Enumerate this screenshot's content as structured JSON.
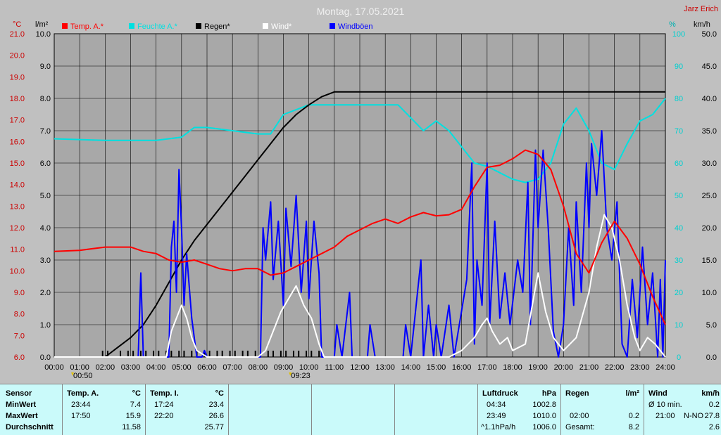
{
  "chart_data": {
    "type": "line",
    "title": "Montag, 17.05.2021",
    "author": "Jarz Erich",
    "ylim_rain": [
      0,
      10
    ],
    "ylim_temp": [
      6,
      21
    ],
    "ylim_hum": [
      0,
      100
    ],
    "ylim_wind": [
      0,
      50
    ],
    "grid": true,
    "axis_unit_left_temp": "°C",
    "axis_unit_left_rain": "l/m²",
    "axis_unit_right_hum": "%",
    "axis_unit_right_wind": "km/h",
    "x_ticks": [
      "00:00",
      "01:00",
      "02:00",
      "03:00",
      "04:00",
      "05:00",
      "06:00",
      "07:00",
      "08:00",
      "09:00",
      "10:00",
      "11:00",
      "12:00",
      "13:00",
      "14:00",
      "15:00",
      "16:00",
      "17:00",
      "18:00",
      "19:00",
      "20:00",
      "21:00",
      "22:00",
      "23:00",
      "24:00"
    ],
    "temp_ticks": [
      "6.0",
      "7.0",
      "8.0",
      "9.0",
      "10.0",
      "11.0",
      "12.0",
      "13.0",
      "14.0",
      "15.0",
      "16.0",
      "17.0",
      "18.0",
      "19.0",
      "20.0",
      "21.0"
    ],
    "rain_ticks": [
      "0.0",
      "1.0",
      "2.0",
      "3.0",
      "4.0",
      "5.0",
      "6.0",
      "7.0",
      "8.0",
      "9.0",
      "10.0"
    ],
    "hum_ticks": [
      "0",
      "10",
      "20",
      "30",
      "40",
      "50",
      "60",
      "70",
      "80",
      "90",
      "100"
    ],
    "wind_ticks": [
      "0.0",
      "5.0",
      "10.0",
      "15.0",
      "20.0",
      "25.0",
      "30.0",
      "35.0",
      "40.0",
      "45.0",
      "50.0"
    ],
    "annotations": [
      {
        "text": "00:50",
        "hour": 0.83
      },
      {
        "text": "09:23",
        "hour": 9.38
      }
    ],
    "series": [
      {
        "name": "Temp. A.*",
        "color": "#ff0000",
        "axis": "temp",
        "points": [
          [
            0,
            10.9
          ],
          [
            1,
            10.95
          ],
          [
            2,
            11.1
          ],
          [
            3,
            11.1
          ],
          [
            3.5,
            10.9
          ],
          [
            4,
            10.8
          ],
          [
            4.5,
            10.5
          ],
          [
            5,
            10.4
          ],
          [
            5.5,
            10.5
          ],
          [
            6,
            10.3
          ],
          [
            6.5,
            10.1
          ],
          [
            7,
            10.0
          ],
          [
            7.5,
            10.1
          ],
          [
            8,
            10.1
          ],
          [
            8.5,
            9.8
          ],
          [
            9,
            9.9
          ],
          [
            9.5,
            10.2
          ],
          [
            10,
            10.5
          ],
          [
            10.5,
            10.8
          ],
          [
            11,
            11.1
          ],
          [
            11.5,
            11.6
          ],
          [
            12,
            11.9
          ],
          [
            12.5,
            12.2
          ],
          [
            13,
            12.4
          ],
          [
            13.5,
            12.2
          ],
          [
            14,
            12.5
          ],
          [
            14.5,
            12.7
          ],
          [
            15,
            12.55
          ],
          [
            15.5,
            12.6
          ],
          [
            16,
            12.85
          ],
          [
            16.5,
            13.9
          ],
          [
            17,
            14.8
          ],
          [
            17.5,
            14.9
          ],
          [
            18,
            15.2
          ],
          [
            18.5,
            15.6
          ],
          [
            19,
            15.4
          ],
          [
            19.5,
            14.7
          ],
          [
            20,
            13.0
          ],
          [
            20.5,
            10.8
          ],
          [
            21,
            9.9
          ],
          [
            21.5,
            11.3
          ],
          [
            22,
            12.3
          ],
          [
            22.5,
            11.5
          ],
          [
            23,
            10.3
          ],
          [
            23.5,
            8.8
          ],
          [
            24,
            7.5
          ]
        ]
      },
      {
        "name": "Feuchte A.*",
        "color": "#00e0e0",
        "axis": "hum",
        "points": [
          [
            0,
            67.5
          ],
          [
            2,
            67
          ],
          [
            4,
            67
          ],
          [
            5,
            68
          ],
          [
            5.5,
            71
          ],
          [
            6,
            71
          ],
          [
            7,
            70
          ],
          [
            8,
            69
          ],
          [
            8.5,
            69
          ],
          [
            9,
            75
          ],
          [
            10,
            78
          ],
          [
            11,
            78
          ],
          [
            12,
            78
          ],
          [
            13,
            78
          ],
          [
            13.5,
            78
          ],
          [
            14,
            74
          ],
          [
            14.5,
            70
          ],
          [
            15,
            73
          ],
          [
            15.5,
            70
          ],
          [
            16,
            65
          ],
          [
            16.5,
            60
          ],
          [
            17,
            59
          ],
          [
            17.5,
            57
          ],
          [
            18,
            55
          ],
          [
            18.5,
            54
          ],
          [
            19,
            55
          ],
          [
            19.5,
            60
          ],
          [
            20,
            72
          ],
          [
            20.5,
            77
          ],
          [
            21,
            70
          ],
          [
            21.5,
            60
          ],
          [
            22,
            58
          ],
          [
            22.5,
            66
          ],
          [
            23,
            73
          ],
          [
            23.5,
            75
          ],
          [
            24,
            80
          ]
        ]
      },
      {
        "name": "Regen*",
        "color": "#000000",
        "axis": "rain",
        "points": [
          [
            0,
            0
          ],
          [
            2,
            0
          ],
          [
            2.5,
            0.3
          ],
          [
            3,
            0.6
          ],
          [
            3.5,
            1.0
          ],
          [
            4,
            1.6
          ],
          [
            4.5,
            2.3
          ],
          [
            5,
            3.0
          ],
          [
            5.5,
            3.6
          ],
          [
            6,
            4.1
          ],
          [
            6.5,
            4.6
          ],
          [
            7,
            5.1
          ],
          [
            7.5,
            5.6
          ],
          [
            8,
            6.1
          ],
          [
            8.5,
            6.6
          ],
          [
            9,
            7.1
          ],
          [
            9.5,
            7.5
          ],
          [
            10,
            7.8
          ],
          [
            10.5,
            8.05
          ],
          [
            11,
            8.2
          ],
          [
            12,
            8.2
          ],
          [
            24,
            8.2
          ]
        ]
      },
      {
        "name": "Wind*",
        "color": "#ffffff",
        "axis": "wind",
        "points": [
          [
            0,
            0
          ],
          [
            4.4,
            0
          ],
          [
            4.6,
            4
          ],
          [
            4.8,
            6
          ],
          [
            5,
            8
          ],
          [
            5.2,
            6
          ],
          [
            5.4,
            3
          ],
          [
            5.6,
            1
          ],
          [
            6,
            0
          ],
          [
            8,
            0
          ],
          [
            8.3,
            1
          ],
          [
            8.6,
            4
          ],
          [
            8.9,
            7
          ],
          [
            9.2,
            9
          ],
          [
            9.5,
            11
          ],
          [
            9.8,
            8
          ],
          [
            10.1,
            6
          ],
          [
            10.4,
            2
          ],
          [
            10.6,
            0
          ],
          [
            15.5,
            0
          ],
          [
            16,
            1
          ],
          [
            16.5,
            3
          ],
          [
            16.8,
            5
          ],
          [
            17,
            6
          ],
          [
            17.2,
            4
          ],
          [
            17.5,
            2
          ],
          [
            17.8,
            3
          ],
          [
            18,
            1
          ],
          [
            18.5,
            2
          ],
          [
            19,
            13
          ],
          [
            19.3,
            7
          ],
          [
            19.6,
            3
          ],
          [
            20,
            1
          ],
          [
            20.5,
            3
          ],
          [
            21,
            10
          ],
          [
            21.3,
            17
          ],
          [
            21.6,
            22
          ],
          [
            21.9,
            20
          ],
          [
            22.2,
            15
          ],
          [
            22.5,
            8
          ],
          [
            22.8,
            3
          ],
          [
            23,
            1
          ],
          [
            23.3,
            3
          ],
          [
            23.6,
            2
          ],
          [
            24,
            0
          ]
        ]
      },
      {
        "name": "Windböen",
        "color": "#0000ff",
        "axis": "wind",
        "points": [
          [
            0,
            0
          ],
          [
            3.3,
            0
          ],
          [
            3.4,
            13
          ],
          [
            3.5,
            0
          ],
          [
            4.5,
            0
          ],
          [
            4.6,
            17
          ],
          [
            4.7,
            21
          ],
          [
            4.8,
            10
          ],
          [
            4.9,
            29
          ],
          [
            5.0,
            20
          ],
          [
            5.1,
            8
          ],
          [
            5.2,
            16
          ],
          [
            5.4,
            6
          ],
          [
            5.6,
            0
          ],
          [
            5.8,
            0
          ],
          [
            5.9,
            1
          ],
          [
            6.0,
            0
          ],
          [
            8.1,
            0
          ],
          [
            8.2,
            20
          ],
          [
            8.3,
            15
          ],
          [
            8.5,
            24
          ],
          [
            8.6,
            12
          ],
          [
            8.8,
            21
          ],
          [
            9.0,
            8
          ],
          [
            9.1,
            23
          ],
          [
            9.3,
            14
          ],
          [
            9.5,
            25
          ],
          [
            9.7,
            10
          ],
          [
            9.9,
            21
          ],
          [
            10.0,
            9
          ],
          [
            10.2,
            21
          ],
          [
            10.4,
            13
          ],
          [
            10.5,
            0
          ],
          [
            11.0,
            0
          ],
          [
            11.1,
            5
          ],
          [
            11.3,
            0
          ],
          [
            11.6,
            10
          ],
          [
            11.7,
            0
          ],
          [
            12.3,
            0
          ],
          [
            12.4,
            5
          ],
          [
            12.6,
            0
          ],
          [
            13.7,
            0
          ],
          [
            13.8,
            5
          ],
          [
            14.0,
            0
          ],
          [
            14.4,
            15
          ],
          [
            14.5,
            0
          ],
          [
            14.7,
            8
          ],
          [
            14.9,
            0
          ],
          [
            15.0,
            5
          ],
          [
            15.2,
            0
          ],
          [
            15.5,
            8
          ],
          [
            15.7,
            0
          ],
          [
            16.2,
            12
          ],
          [
            16.4,
            30
          ],
          [
            16.5,
            2
          ],
          [
            16.6,
            15
          ],
          [
            16.8,
            8
          ],
          [
            17.0,
            30
          ],
          [
            17.1,
            5
          ],
          [
            17.3,
            21
          ],
          [
            17.5,
            6
          ],
          [
            17.7,
            13
          ],
          [
            17.9,
            5
          ],
          [
            18.2,
            15
          ],
          [
            18.4,
            10
          ],
          [
            18.6,
            27
          ],
          [
            18.7,
            5
          ],
          [
            18.9,
            32
          ],
          [
            19.0,
            20
          ],
          [
            19.2,
            32
          ],
          [
            19.4,
            20
          ],
          [
            19.6,
            4
          ],
          [
            19.8,
            0
          ],
          [
            20.0,
            5
          ],
          [
            20.2,
            20
          ],
          [
            20.4,
            8
          ],
          [
            20.5,
            24
          ],
          [
            20.7,
            10
          ],
          [
            20.9,
            30
          ],
          [
            21.0,
            20
          ],
          [
            21.1,
            33
          ],
          [
            21.3,
            25
          ],
          [
            21.5,
            35
          ],
          [
            21.7,
            20
          ],
          [
            21.9,
            15
          ],
          [
            22.1,
            24
          ],
          [
            22.3,
            2
          ],
          [
            22.5,
            0
          ],
          [
            22.7,
            12
          ],
          [
            22.9,
            3
          ],
          [
            23.1,
            17
          ],
          [
            23.3,
            5
          ],
          [
            23.5,
            13
          ],
          [
            23.7,
            0
          ],
          [
            23.8,
            12
          ],
          [
            23.9,
            0
          ],
          [
            24,
            15
          ]
        ]
      }
    ],
    "rain_bars_hours": [
      1.9,
      2.1,
      2.6,
      2.9,
      3.1,
      3.4,
      3.6,
      3.9,
      4.1,
      4.4,
      4.6,
      4.9,
      5.1,
      5.4,
      5.6,
      5.9,
      6.1,
      6.4,
      6.6,
      6.9,
      7.1,
      7.4,
      7.6,
      7.9,
      8.1,
      8.4,
      8.6,
      8.9,
      9.1,
      9.4,
      9.6,
      9.9,
      10.1,
      10.4
    ]
  },
  "legend": {
    "temp_label": "Temp. A.*",
    "hum_label": "Feuchte A.*",
    "rain_label": "Regen*",
    "wind_label": "Wind*",
    "gust_label": "Windböen",
    "temp_color": "#ff0000",
    "hum_color": "#00e0e0",
    "rain_color": "#000000",
    "wind_color": "#ffffff",
    "gust_color": "#0000ff"
  },
  "stats": {
    "sensor": {
      "header": "Sensor",
      "min": "MinWert",
      "max": "MaxWert",
      "avg": "Durchschnitt"
    },
    "temp_a": {
      "header": "Temp. A.",
      "unit": "°C",
      "min_time": "23:44",
      "min_val": "7.4",
      "max_time": "17:50",
      "max_val": "15.9",
      "avg": "11.58"
    },
    "temp_i": {
      "header": "Temp. I.",
      "unit": "°C",
      "min_time": "17:24",
      "min_val": "23.4",
      "max_time": "22:20",
      "max_val": "26.6",
      "avg": "25.77"
    },
    "pressure": {
      "header": "Luftdruck",
      "unit": "hPa",
      "min_time": "04:34",
      "min_val": "1002.8",
      "max_time": "23:49",
      "max_val": "1010.0",
      "trend": "^1.1hPa/h",
      "avg": "1006.0"
    },
    "rain": {
      "header": "Regen",
      "unit": "l/m²",
      "time": "02:00",
      "val": "0.2",
      "total_label": "Gesamt:",
      "total": "8.2"
    },
    "wind": {
      "header": "Wind",
      "unit": "km/h",
      "avg_label": "Ø 10 min.",
      "avg_val": "0.2",
      "max_time": "21:00",
      "max_dir": "N-NO",
      "max_val": "27.8",
      "avg": "2.6"
    }
  }
}
